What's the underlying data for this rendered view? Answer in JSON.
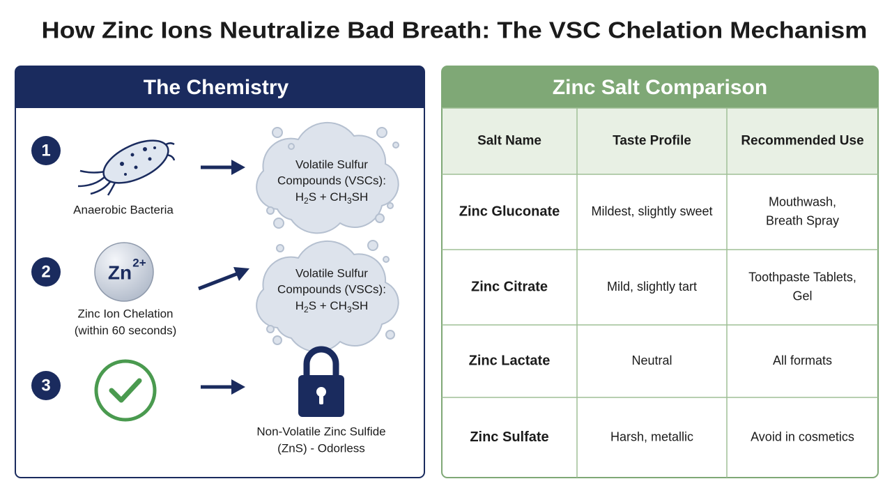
{
  "title": "How Zinc Ions Neutralize Bad Breath: The VSC Chelation Mechanism",
  "chemistry": {
    "heading": "The Chemistry",
    "steps": [
      {
        "number": "1",
        "label": [
          "Anaerobic Bacteria"
        ],
        "cloud": {
          "lines": [
            "Volatile Sulfur",
            "Compounds (VSCs):"
          ],
          "formula": [
            "H",
            "2",
            "S  + CH",
            "3",
            "SH"
          ]
        }
      },
      {
        "number": "2",
        "ion": {
          "symbol": "Zn",
          "charge": "2+"
        },
        "label": [
          "Zinc Ion Chelation",
          "(within 60 seconds)"
        ],
        "cloud": {
          "lines": [
            "Volatile Sulfur",
            "Compounds (VSCs):"
          ],
          "formula": [
            "H",
            "2",
            "S  + CH",
            "3",
            "SH"
          ]
        }
      },
      {
        "number": "3",
        "label": [
          "Non-Volatile Zinc Sulfide",
          "(ZnS) - Odorless"
        ]
      }
    ]
  },
  "comparison": {
    "heading": "Zinc Salt Comparison",
    "table": {
      "header": [
        "Salt Name",
        "Taste Profile",
        "Recommended Use"
      ],
      "rows": [
        [
          [
            "Zinc Gluconate"
          ],
          [
            "Mildest, slightly sweet"
          ],
          [
            "Mouthwash,",
            "Breath Spray"
          ]
        ],
        [
          [
            "Zinc Citrate"
          ],
          [
            "Mild, slightly tart"
          ],
          [
            "Toothpaste Tablets,",
            "Gel"
          ]
        ],
        [
          [
            "Zinc Lactate"
          ],
          [
            "Neutral"
          ],
          [
            "All formats"
          ]
        ],
        [
          [
            "Zinc Sulfate"
          ],
          [
            "Harsh, metallic"
          ],
          [
            "Avoid in cosmetics"
          ]
        ]
      ]
    }
  }
}
